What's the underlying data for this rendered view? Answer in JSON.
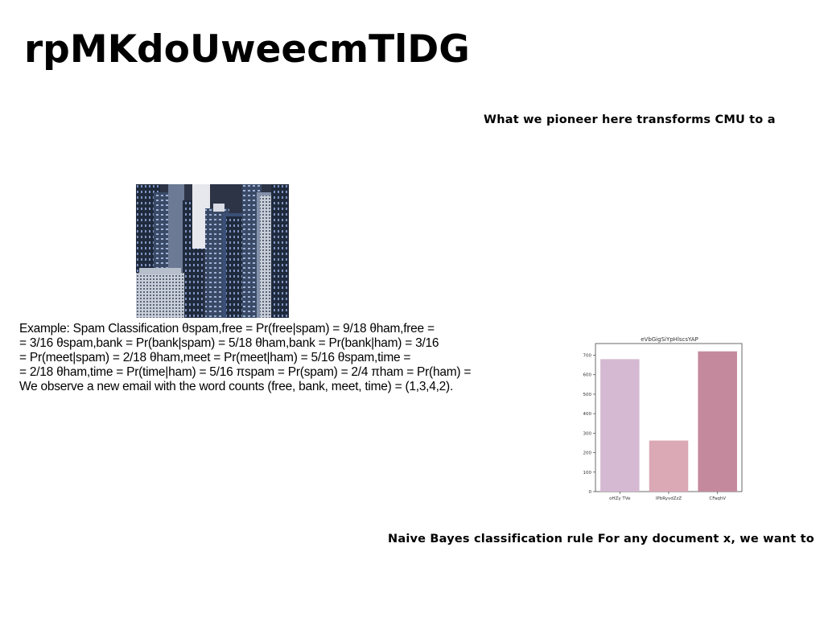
{
  "title": "rpMKdoUweecmTlDG",
  "captions": {
    "top": "What we pioneer here transforms CMU to a",
    "bottom": "Naive Bayes classification rule For any document x, we want to"
  },
  "body": {
    "lines": [
      "Example: Spam Classification θspam,free = Pr(free|spam) = 9/18 θham,free =",
      "= 3/16 θspam,bank = Pr(bank|spam) = 5/18 θham,bank = Pr(bank|ham) = 3/16",
      "= Pr(meet|spam) = 2/18 θham,meet = Pr(meet|ham) = 5/16 θspam,time =",
      "= 2/18 θham,time = Pr(time|ham) = 5/16 πspam = Pr(spam) = 2/4 πham = Pr(ham) =",
      "We observe a new email with the word counts (free, bank, meet, time) = (1,3,4,2)."
    ]
  },
  "chart_data": {
    "type": "bar",
    "title": "eVbGigSiYpHlscsYAP",
    "categories": [
      "oHZy TVe",
      "lPbRyvdZzZ",
      "CFaqhV"
    ],
    "values": [
      680,
      262,
      720
    ],
    "colors": [
      "#d5b9d2",
      "#dba8b5",
      "#c4899c"
    ],
    "ylim": [
      0,
      760
    ],
    "yticks": [
      0,
      100,
      200,
      300,
      400,
      500,
      600,
      700
    ],
    "xlabel": "",
    "ylabel": "",
    "grid": false
  }
}
